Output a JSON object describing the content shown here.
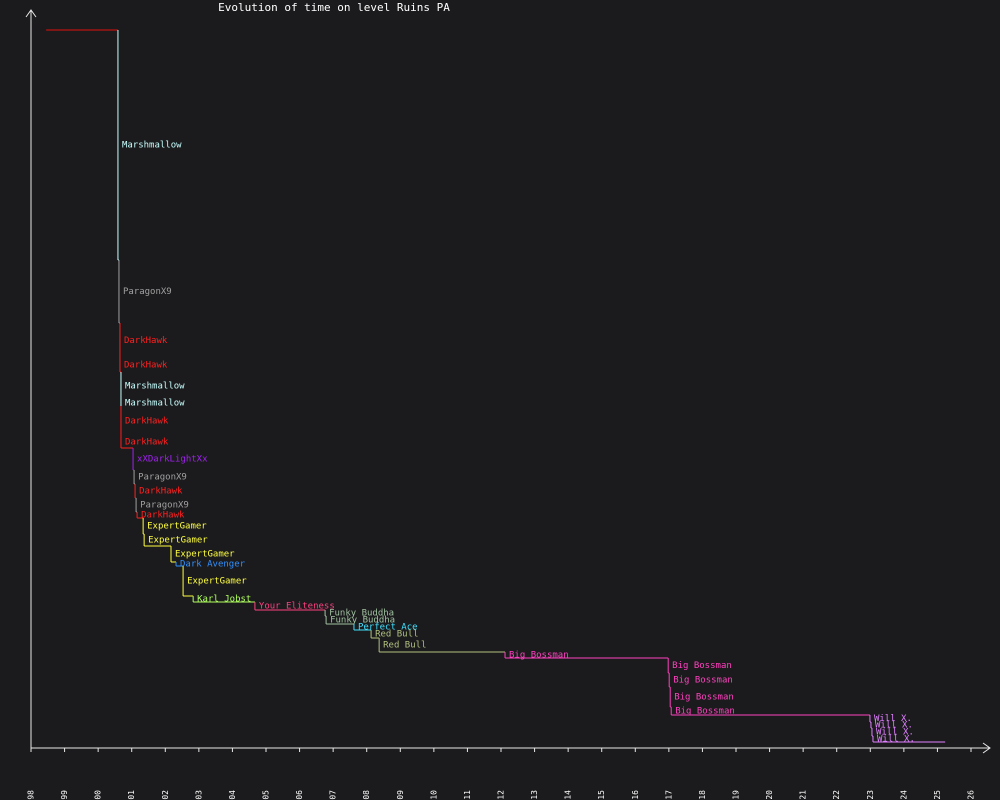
{
  "chart_data": {
    "type": "step",
    "title": "Evolution of time on level Ruins PA",
    "xlim": [
      1998,
      2026
    ],
    "xticks": [
      1998,
      1999,
      2000,
      2001,
      2002,
      2003,
      2004,
      2005,
      2006,
      2007,
      2008,
      2009,
      2010,
      2011,
      2012,
      2013,
      2014,
      2015,
      2016,
      2017,
      2018,
      2019,
      2020,
      2021,
      2022,
      2023,
      2024,
      2025,
      2026
    ],
    "ylim": [
      0,
      736
    ],
    "end_x": 2025.23,
    "x": [
      1998.45,
      2000.59,
      2000.62,
      2000.65,
      2000.65,
      2000.68,
      2000.68,
      2000.68,
      2000.68,
      2001.04,
      2001.07,
      2001.1,
      2001.13,
      2001.16,
      2001.34,
      2001.37,
      2002.17,
      2002.32,
      2002.53,
      2002.83,
      2004.67,
      2006.76,
      2006.79,
      2007.62,
      2008.13,
      2008.37,
      2012.12,
      2016.98,
      2017.01,
      2017.04,
      2017.07,
      2022.99,
      2023.02,
      2023.05,
      2023.08
    ],
    "values": [
      718,
      488,
      425,
      390,
      376,
      348,
      342,
      312,
      300,
      278,
      264,
      250,
      236,
      230,
      214,
      202,
      186,
      182,
      152,
      146,
      138,
      132,
      124,
      118,
      110,
      96,
      90,
      75,
      61,
      41,
      33,
      26,
      20,
      12,
      6
    ],
    "names": [
      null,
      "Marshmallow",
      "ParagonX9",
      "DarkHawk",
      "DarkHawk",
      "Marshmallow",
      "Marshmallow",
      "DarkHawk",
      "DarkHawk",
      "xXDarkLightXx",
      "ParagonX9",
      "DarkHawk",
      "ParagonX9",
      "DarkHawk",
      "ExpertGamer",
      "ExpertGamer",
      "ExpertGamer",
      "Dark Avenger",
      "ExpertGamer",
      "Karl Jobst",
      "Your Eliteness",
      "Funky Buddha",
      "Funky Buddha",
      "Perfect Ace",
      "Red Bull",
      "Red Bull",
      "Big Bossman",
      "Big Bossman",
      "Big Bossman",
      "Big Bossman",
      "Big Bossman",
      "Will X.",
      "Will X.",
      "Will X.",
      "Will X."
    ],
    "colors": [
      "#e01010",
      "#c8ffff",
      "#a0a0a0",
      "#ff2020",
      "#ff2020",
      "#c8ffff",
      "#c8ffff",
      "#ff2020",
      "#ff2020",
      "#a020f0",
      "#a0a0a0",
      "#ff2020",
      "#a0a0a0",
      "#ff2020",
      "#ffff40",
      "#ffff40",
      "#ffff40",
      "#3090ff",
      "#ffff40",
      "#b0ff60",
      "#ff4080",
      "#a0c0a0",
      "#a0c0a0",
      "#40e0ff",
      "#b0c080",
      "#b0c080",
      "#ff40c0",
      "#ff40c0",
      "#ff40c0",
      "#ff40c0",
      "#ff40c0",
      "#e080ff",
      "#e080ff",
      "#e080ff",
      "#e080ff"
    ]
  }
}
